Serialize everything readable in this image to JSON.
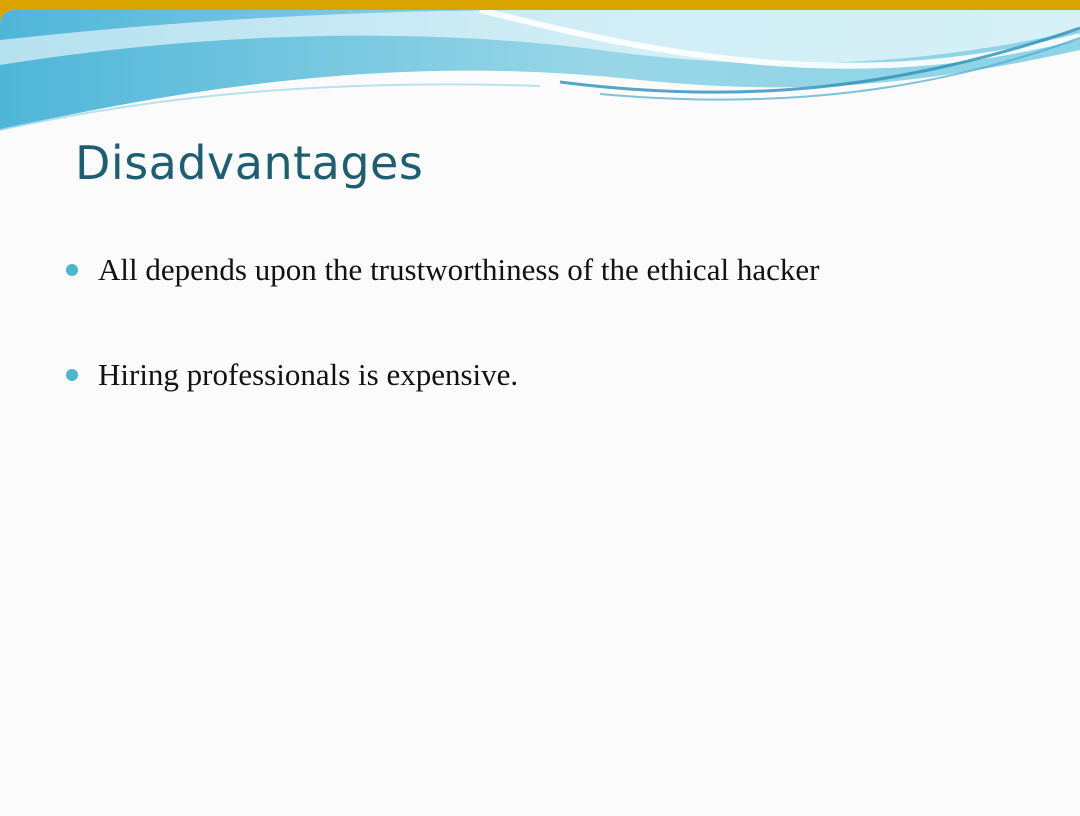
{
  "slide": {
    "title": "Disadvantages",
    "bullets": [
      {
        "text": "All depends upon the trustworthiness of the ethical hacker"
      },
      {
        "text": "Hiring professionals is expensive."
      }
    ]
  },
  "colors": {
    "title": "#1d5f72",
    "bullet": "#4ab8cc",
    "wave_light": "#bfe8f1",
    "wave_mid": "#78c7de",
    "wave_dark": "#2e8fb6",
    "background": "#fbfbfb",
    "frame_edge": "#d9a300"
  }
}
